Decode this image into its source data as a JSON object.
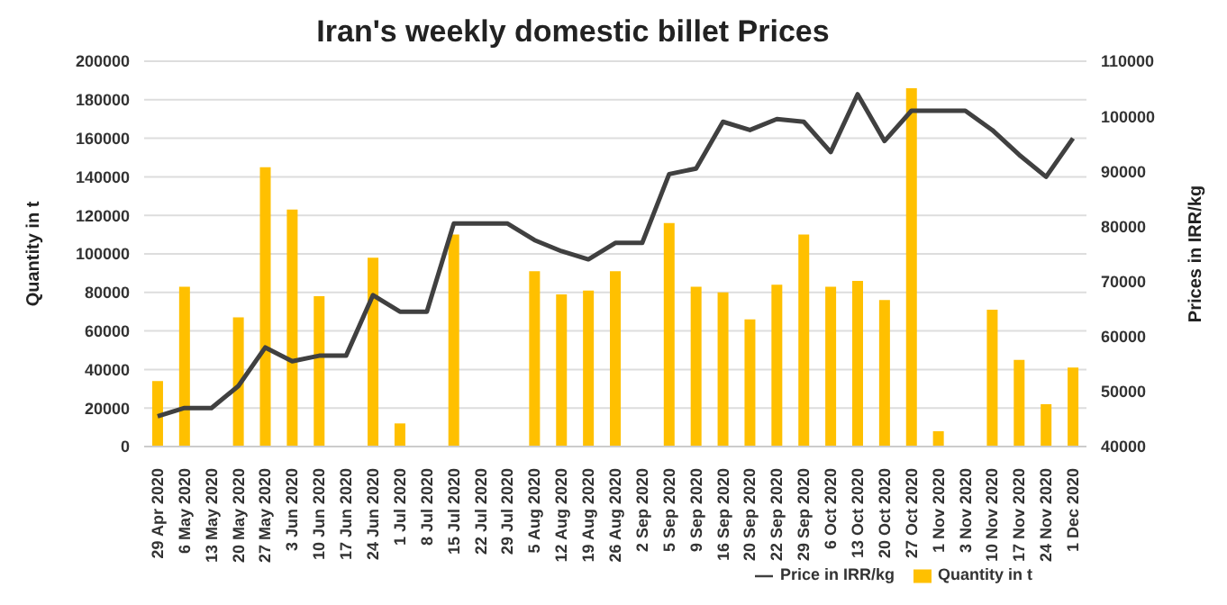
{
  "chart_data": {
    "type": "bar",
    "title": "Iran's weekly domestic billet Prices",
    "ylabel": "Quantity in t",
    "y2label": "Prices in IRR/kg",
    "categories": [
      "29 Apr 2020",
      "6 May 2020",
      "13 May 2020",
      "20 May 2020",
      "27 May 2020",
      "3 Jun 2020",
      "10 Jun 2020",
      "17 Jun 2020",
      "24 Jun 2020",
      "1 Jul 2020",
      "8 Jul 2020",
      "15 Jul 2020",
      "22 Jul 2020",
      "29 Jul 2020",
      "5 Aug 2020",
      "12 Aug 2020",
      "19 Aug 2020",
      "26 Aug 2020",
      "2 Sep 2020",
      "5 Sep 2020",
      "9 Sep 2020",
      "16 Sep 2020",
      "20 Sep 2020",
      "22 Sep 2020",
      "29 Sep 2020",
      "6 Oct 2020",
      "13 Oct 2020",
      "20 Oct 2020",
      "27 Oct 2020",
      "1 Nov 2020",
      "3 Nov 2020",
      "10 Nov 2020",
      "17 Nov 2020",
      "24 Nov 2020",
      "1 Dec 2020"
    ],
    "series": [
      {
        "name": "Quantity in t",
        "color": "#ffc000",
        "values": [
          34000,
          83000,
          null,
          67000,
          145000,
          123000,
          78000,
          null,
          98000,
          12000,
          null,
          110000,
          null,
          null,
          91000,
          79000,
          81000,
          91000,
          null,
          116000,
          83000,
          80000,
          66000,
          84000,
          110000,
          83000,
          86000,
          76000,
          186000,
          8000,
          null,
          71000,
          45000,
          22000,
          41000
        ]
      },
      {
        "name": "Price in IRR/kg",
        "type": "line",
        "axis": "y2",
        "color": "#404040",
        "values": [
          45500,
          47000,
          47000,
          51000,
          58000,
          55500,
          56500,
          56500,
          67500,
          64500,
          64500,
          80500,
          80500,
          80500,
          77500,
          75500,
          74000,
          77000,
          77000,
          89500,
          90500,
          99000,
          97500,
          99500,
          99000,
          93500,
          104000,
          95500,
          101000,
          101000,
          101000,
          97500,
          93000,
          89000,
          96000
        ]
      }
    ],
    "ylim": [
      0,
      200000
    ],
    "yticks": [
      0,
      20000,
      40000,
      60000,
      80000,
      100000,
      120000,
      140000,
      160000,
      180000,
      200000
    ],
    "y2lim": [
      40000,
      110000
    ],
    "y2ticks": [
      40000,
      50000,
      60000,
      70000,
      80000,
      90000,
      100000,
      110000
    ],
    "grid": "y",
    "legend": "bottom",
    "marker": "none"
  }
}
